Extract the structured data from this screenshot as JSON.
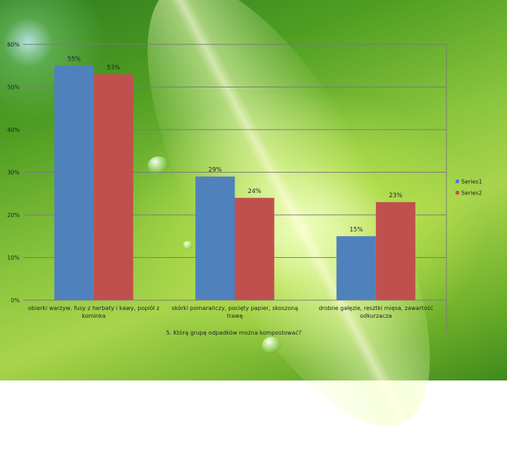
{
  "chart_data": {
    "type": "bar",
    "title": "",
    "xlabel": "5. Którą grupę odpadków można kompostować?",
    "ylabel": "",
    "ylim": [
      0,
      60
    ],
    "yticks": [
      "0%",
      "10%",
      "20%",
      "30%",
      "40%",
      "50%",
      "60%"
    ],
    "categories": [
      [
        "obierki warzyw, fusy z herbaty i kawy, popiół z",
        "kominka"
      ],
      [
        "skórki pomarańczy, pocięty papier, skoszoną",
        "trawę"
      ],
      [
        "drobne gałęzie, resztki mięsa, zawartość",
        "odkurzacza"
      ]
    ],
    "series": [
      {
        "name": "Series1",
        "values": [
          55,
          29,
          15
        ],
        "labels": [
          "55%",
          "29%",
          "15%"
        ],
        "color": "#4f81bd"
      },
      {
        "name": "Series2",
        "values": [
          53,
          24,
          23
        ],
        "labels": [
          "53%",
          "24%",
          "23%"
        ],
        "color": "#c0504d"
      }
    ],
    "grid": true,
    "legend": "right"
  }
}
